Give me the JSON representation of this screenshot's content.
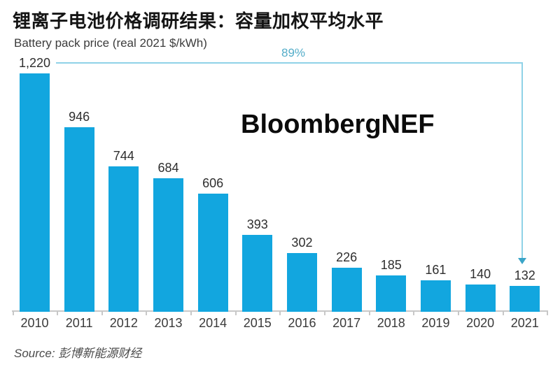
{
  "header": {
    "title": "锂离子电池价格调研结果：容量加权平均水平",
    "subtitle": "Battery pack price (real 2021 $/kWh)"
  },
  "watermark": "BloombergNEF",
  "annotation": {
    "label": "89%",
    "label_color": "#54adc9",
    "line_color": "#8fd2e7",
    "arrow_color": "#3aa5c8"
  },
  "chart_data": {
    "type": "bar",
    "title": "锂离子电池价格调研结果：容量加权平均水平",
    "axis_title": "Battery pack price (real 2021 $/kWh)",
    "categories": [
      "2010",
      "2011",
      "2012",
      "2013",
      "2014",
      "2015",
      "2016",
      "2017",
      "2018",
      "2019",
      "2020",
      "2021"
    ],
    "values": [
      1220,
      946,
      744,
      684,
      606,
      393,
      302,
      226,
      185,
      161,
      140,
      132
    ],
    "value_labels": [
      "1,220",
      "946",
      "744",
      "684",
      "606",
      "393",
      "302",
      "226",
      "185",
      "161",
      "140",
      "132"
    ],
    "bar_color": "#12a6df",
    "xlabel": "",
    "ylabel": "Battery pack price (real 2021 $/kWh)",
    "ylim": [
      0,
      1220
    ],
    "grid": false,
    "legend": false,
    "annotations": [
      {
        "text": "89%",
        "meaning": "decline shown by arrow from 2010 level to 2021 bar"
      }
    ]
  },
  "source": {
    "text": "Source: 彭博新能源财经"
  }
}
